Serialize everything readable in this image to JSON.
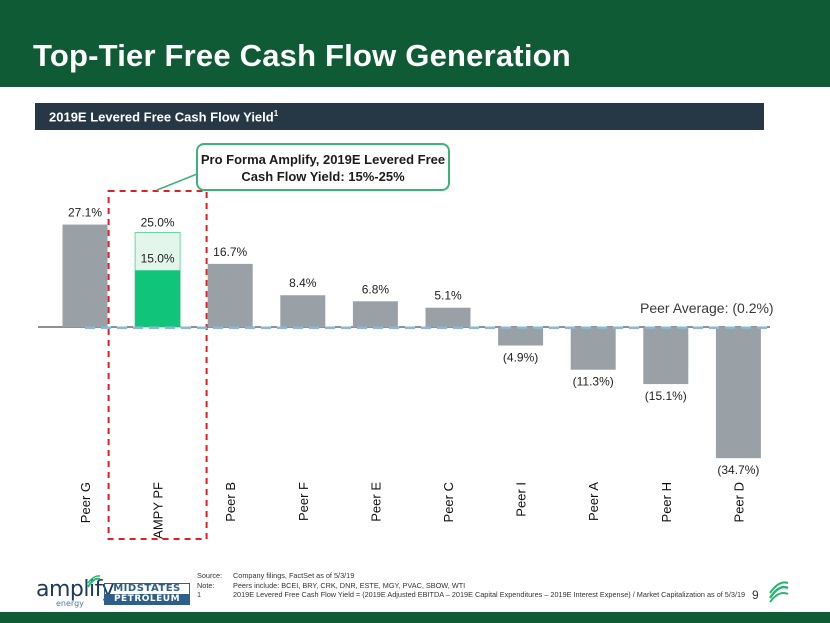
{
  "header": {
    "title": "Top-Tier Free Cash Flow Generation",
    "subtitle": "2019E Levered Free Cash Flow Yield",
    "subtitle_sup": "1"
  },
  "callout": {
    "line1": "Pro Forma Amplify, 2019E Levered Free",
    "line2": "Cash Flow Yield: 15%-25%"
  },
  "peer_average_label": "Peer Average: (0.2%)",
  "chart_data": {
    "type": "bar",
    "title": "2019E Levered Free Cash Flow Yield",
    "categories": [
      "Peer G",
      "AMPY PF",
      "Peer B",
      "Peer F",
      "Peer E",
      "Peer C",
      "Peer I",
      "Peer A",
      "Peer H",
      "Peer D"
    ],
    "values": [
      27.1,
      15.0,
      16.7,
      8.4,
      6.8,
      5.1,
      -4.9,
      -11.3,
      -15.1,
      -34.7
    ],
    "labels": [
      "27.1%",
      "15.0%",
      "16.7%",
      "8.4%",
      "6.8%",
      "5.1%",
      "(4.9%)",
      "(11.3%)",
      "(15.1%)",
      "(34.7%)"
    ],
    "range_high": {
      "category": "AMPY PF",
      "value": 25.0,
      "label": "25.0%"
    },
    "highlight_category": "AMPY PF",
    "peer_average": -0.2,
    "ylim": [
      -36,
      30
    ],
    "colors": {
      "bar": "#9aa1a6",
      "highlight": "#10c47a",
      "range_fill": "#e3f6ec",
      "range_border": "#6fd3a4",
      "avg_line": "#8ab8d8",
      "dashed_box": "#e02020"
    }
  },
  "footer": {
    "source_key": "Source:",
    "source_val": "Company filings, FactSet as of 5/3/19",
    "note_key": "Note:",
    "note_val": "Peers include: BCEI, BRY, CRK, DNR, ESTE, MGY, PVAC, SBOW, WTI",
    "fn_key": "1",
    "fn_val": "2019E Levered Free Cash Flow Yield = (2019E Adjusted EBITDA – 2019E Capital Expenditures – 2019E Interest Expense) / Market Capitalization as of 5/3/19",
    "page": "9",
    "logo_amplify": "amplify",
    "logo_amplify_sub": "energy",
    "logo_mid_top": "MIDSTATES",
    "logo_mid_bottom": "PETROLEUM"
  }
}
